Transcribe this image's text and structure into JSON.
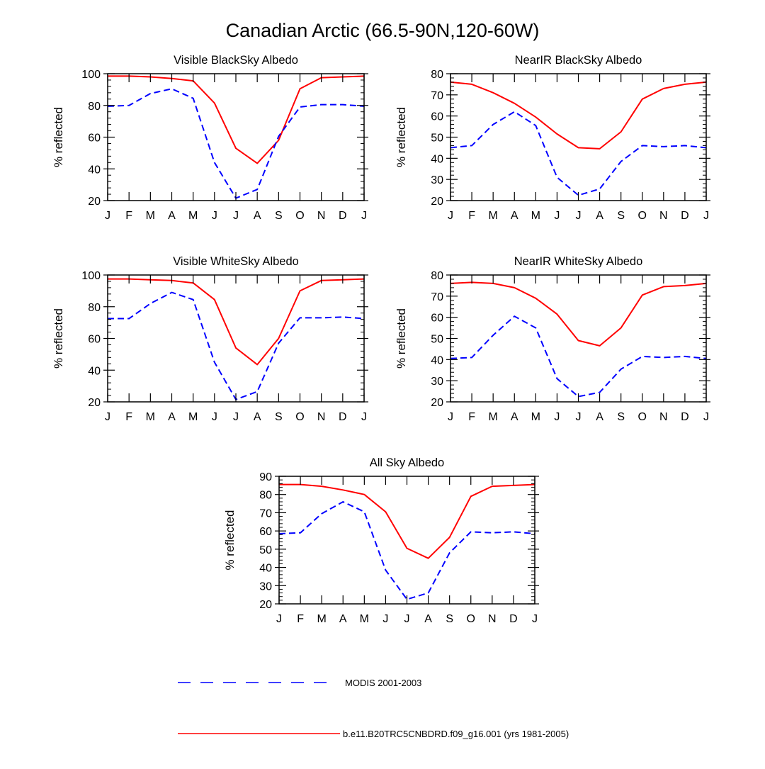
{
  "figure": {
    "title": "Canadian Arctic (66.5-90N,120-60W)"
  },
  "legend": {
    "items": [
      {
        "label": "MODIS 2001-2003",
        "color": "#0000ff",
        "style": "dashed"
      },
      {
        "label": "b.e11.B20TRC5CNBDRD.f09_g16.001 (yrs 1981-2005)",
        "color": "#ff0000",
        "style": "solid"
      }
    ]
  },
  "chart_data": [
    {
      "type": "line",
      "title": "Visible BlackSky Albedo",
      "ylabel": "% reflected",
      "xlabel": "",
      "categories": [
        "J",
        "F",
        "M",
        "A",
        "M",
        "J",
        "J",
        "A",
        "S",
        "O",
        "N",
        "D",
        "J"
      ],
      "ylim": [
        20,
        100
      ],
      "yticks": [
        20,
        40,
        60,
        80,
        100
      ],
      "series": [
        {
          "name": "b.e11.B20TRC5CNBDRD.f09_g16.001 (yrs 1981-2005)",
          "color": "#ff0000",
          "style": "solid",
          "values": [
            98.5,
            98.5,
            98,
            97,
            95.5,
            81.5,
            53,
            43.5,
            58,
            90.5,
            97.5,
            98,
            98.5
          ]
        },
        {
          "name": "MODIS 2001-2003",
          "color": "#0000ff",
          "style": "dashed",
          "values": [
            79.5,
            80,
            87.5,
            90.5,
            84.5,
            44,
            21.5,
            27,
            60.5,
            79,
            80.5,
            80.5,
            79.5
          ]
        }
      ]
    },
    {
      "type": "line",
      "title": "NearIR BlackSky Albedo",
      "ylabel": "% reflected",
      "xlabel": "",
      "categories": [
        "J",
        "F",
        "M",
        "A",
        "M",
        "J",
        "J",
        "A",
        "S",
        "O",
        "N",
        "D",
        "J"
      ],
      "ylim": [
        20,
        80
      ],
      "yticks": [
        20,
        30,
        40,
        50,
        60,
        70,
        80
      ],
      "series": [
        {
          "name": "b.e11.B20TRC5CNBDRD.f09_g16.001 (yrs 1981-2005)",
          "color": "#ff0000",
          "style": "solid",
          "values": [
            76,
            75,
            71,
            66,
            59.5,
            51.5,
            45,
            44.5,
            52.5,
            68,
            73,
            75,
            76
          ]
        },
        {
          "name": "MODIS 2001-2003",
          "color": "#0000ff",
          "style": "dashed",
          "values": [
            45,
            46,
            56,
            62,
            55.5,
            31,
            22.5,
            25.5,
            38.5,
            46,
            45.5,
            46,
            45
          ]
        }
      ]
    },
    {
      "type": "line",
      "title": "Visible WhiteSky Albedo",
      "ylabel": "% reflected",
      "xlabel": "",
      "categories": [
        "J",
        "F",
        "M",
        "A",
        "M",
        "J",
        "J",
        "A",
        "S",
        "O",
        "N",
        "D",
        "J"
      ],
      "ylim": [
        20,
        100
      ],
      "yticks": [
        20,
        40,
        60,
        80,
        100
      ],
      "series": [
        {
          "name": "b.e11.B20TRC5CNBDRD.f09_g16.001 (yrs 1981-2005)",
          "color": "#ff0000",
          "style": "solid",
          "values": [
            97.5,
            97.5,
            97,
            96.5,
            95,
            84.5,
            54,
            43.5,
            60,
            90,
            96.5,
            97,
            97.5
          ]
        },
        {
          "name": "MODIS 2001-2003",
          "color": "#0000ff",
          "style": "dashed",
          "values": [
            72.5,
            72.5,
            82,
            89,
            84.5,
            45,
            21.5,
            26.5,
            57,
            73,
            73,
            73.5,
            72.5
          ]
        }
      ]
    },
    {
      "type": "line",
      "title": "NearIR WhiteSky Albedo",
      "ylabel": "% reflected",
      "xlabel": "",
      "categories": [
        "J",
        "F",
        "M",
        "A",
        "M",
        "J",
        "J",
        "A",
        "S",
        "O",
        "N",
        "D",
        "J"
      ],
      "ylim": [
        20,
        80
      ],
      "yticks": [
        20,
        30,
        40,
        50,
        60,
        70,
        80
      ],
      "series": [
        {
          "name": "b.e11.B20TRC5CNBDRD.f09_g16.001 (yrs 1981-2005)",
          "color": "#ff0000",
          "style": "solid",
          "values": [
            76,
            76.5,
            76,
            74,
            69,
            61.5,
            49,
            46.5,
            55,
            70.5,
            74.5,
            75,
            76
          ]
        },
        {
          "name": "MODIS 2001-2003",
          "color": "#0000ff",
          "style": "dashed",
          "values": [
            40.5,
            41,
            51.5,
            60.5,
            55,
            31,
            22.5,
            24.5,
            35.5,
            41.5,
            41,
            41.5,
            40.5
          ]
        }
      ]
    },
    {
      "type": "line",
      "title": "All Sky Albedo",
      "ylabel": "% reflected",
      "xlabel": "",
      "categories": [
        "J",
        "F",
        "M",
        "A",
        "M",
        "J",
        "J",
        "A",
        "S",
        "O",
        "N",
        "D",
        "J"
      ],
      "ylim": [
        20,
        90
      ],
      "yticks": [
        20,
        30,
        40,
        50,
        60,
        70,
        80,
        90
      ],
      "series": [
        {
          "name": "b.e11.B20TRC5CNBDRD.f09_g16.001 (yrs 1981-2005)",
          "color": "#ff0000",
          "style": "solid",
          "values": [
            85.5,
            85.5,
            84.5,
            82.5,
            80,
            70.5,
            50.5,
            45,
            56.5,
            79,
            84.5,
            85,
            85.5
          ]
        },
        {
          "name": "MODIS 2001-2003",
          "color": "#0000ff",
          "style": "dashed",
          "values": [
            58.5,
            59,
            69.5,
            76,
            70.5,
            38.5,
            22.5,
            26,
            48,
            59.5,
            59,
            59.5,
            58.5
          ]
        }
      ]
    }
  ]
}
